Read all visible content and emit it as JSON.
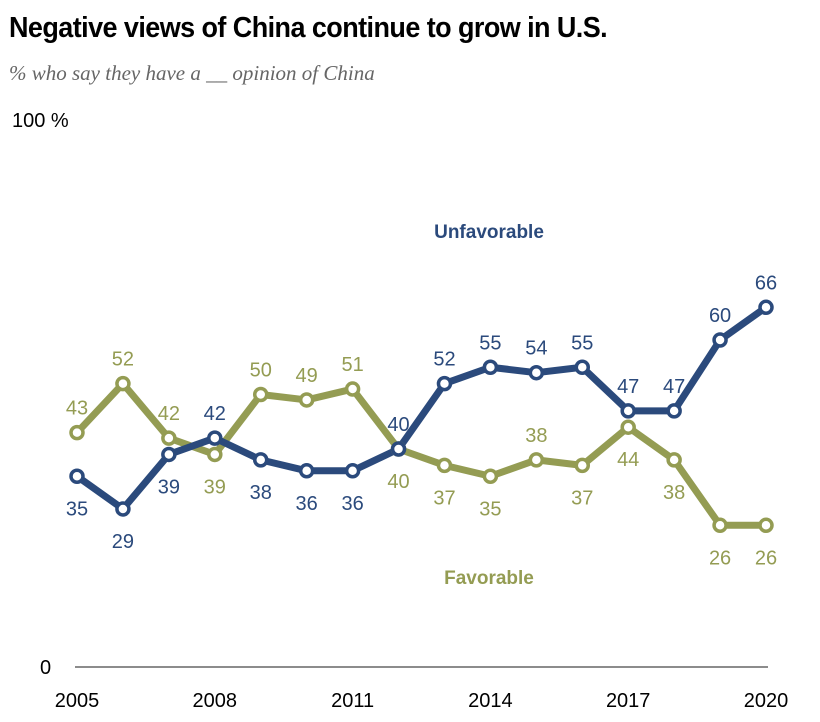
{
  "chart_data": {
    "type": "line",
    "title": "Negative views of China continue to grow in U.S.",
    "subtitle": "% who say they have a __ opinion of China",
    "x": [
      2005,
      2006,
      2007,
      2008,
      2009,
      2010,
      2011,
      2012,
      2013,
      2014,
      2015,
      2016,
      2017,
      2018,
      2019,
      2020
    ],
    "x_tick_labels": [
      "2005",
      "2008",
      "2011",
      "2014",
      "2017",
      "2020"
    ],
    "x_ticks": [
      2005,
      2008,
      2011,
      2014,
      2017,
      2020
    ],
    "y_tick_labels": [
      "0",
      "100 %"
    ],
    "ylim": [
      0,
      100
    ],
    "xlim": [
      2005,
      2020
    ],
    "grid": false,
    "series": [
      {
        "name": "Unfavorable",
        "color": "#2b4a7c",
        "values": [
          35,
          29,
          39,
          42,
          38,
          36,
          36,
          40,
          52,
          55,
          54,
          55,
          47,
          47,
          60,
          66
        ],
        "label_pos": [
          "below",
          "below",
          "below",
          "above",
          "below",
          "below",
          "below",
          "above",
          "above",
          "above",
          "above",
          "above",
          "above",
          "above",
          "above",
          "above"
        ]
      },
      {
        "name": "Favorable",
        "color": "#949c53",
        "values": [
          43,
          52,
          42,
          39,
          50,
          49,
          51,
          40,
          37,
          35,
          38,
          37,
          44,
          38,
          26,
          26
        ],
        "label_pos": [
          "above",
          "above",
          "above",
          "below",
          "above",
          "above",
          "above",
          "below",
          "below",
          "below",
          "above",
          "below",
          "below",
          "below",
          "below",
          "below"
        ]
      }
    ],
    "annotations": [
      {
        "text": "Unfavorable",
        "series": "Unfavorable",
        "near_year": 2014,
        "position": "above"
      },
      {
        "text": "Favorable",
        "series": "Favorable",
        "near_year": 2014,
        "position": "below"
      }
    ]
  },
  "colors": {
    "unfavorable": "#2b4a7c",
    "favorable": "#949c53",
    "axis": "#8c8c8c"
  }
}
